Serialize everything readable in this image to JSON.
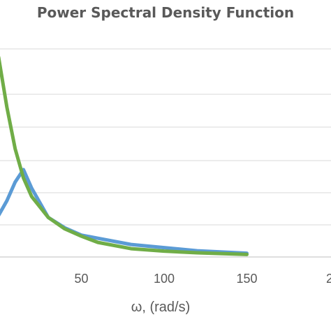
{
  "chart_data": {
    "type": "line",
    "title": "Power Spectral Density Function",
    "xlabel": "ω, (rad/s)",
    "ylabel": "",
    "x_ticks": [
      "50",
      "100",
      "150",
      "2"
    ],
    "xlim": [
      0,
      200
    ],
    "ylim": [
      0,
      100
    ],
    "grid": true,
    "series": [
      {
        "color": "#5b9bd5",
        "x": [
          0,
          5,
          10,
          15,
          20,
          30,
          40,
          50,
          60,
          80,
          100,
          120,
          150
        ],
        "y": [
          20,
          27,
          36,
          42,
          33,
          19,
          14,
          10.5,
          9,
          6,
          4.5,
          3,
          1.8
        ]
      },
      {
        "color": "#70ad47",
        "x": [
          0,
          5,
          10,
          15,
          20,
          25,
          30,
          40,
          50,
          60,
          80,
          100,
          120,
          150
        ],
        "y": [
          96,
          72,
          52,
          38,
          29,
          24,
          19,
          13.5,
          10,
          7,
          4,
          2.8,
          2,
          1.2
        ]
      }
    ]
  }
}
